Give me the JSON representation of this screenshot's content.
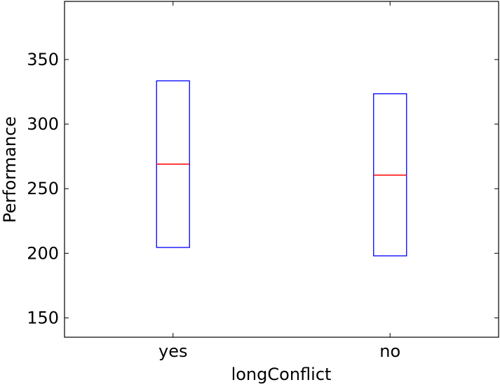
{
  "chart_data": {
    "type": "box",
    "title": "",
    "xlabel": "longConflict",
    "ylabel": "Performance",
    "ylim": [
      135,
      395
    ],
    "yticks": [
      150,
      200,
      250,
      300,
      350
    ],
    "categories": [
      "yes",
      "no"
    ],
    "boxes": [
      {
        "category": "yes",
        "q1": 204.5,
        "median": 269.0,
        "q3": 333.5
      },
      {
        "category": "no",
        "q1": 198.0,
        "median": 260.5,
        "q3": 323.5
      }
    ],
    "grid": false,
    "legend": "none",
    "colors": {
      "box": "#0000ff",
      "median": "#ff0000",
      "axis": "#000000"
    }
  }
}
